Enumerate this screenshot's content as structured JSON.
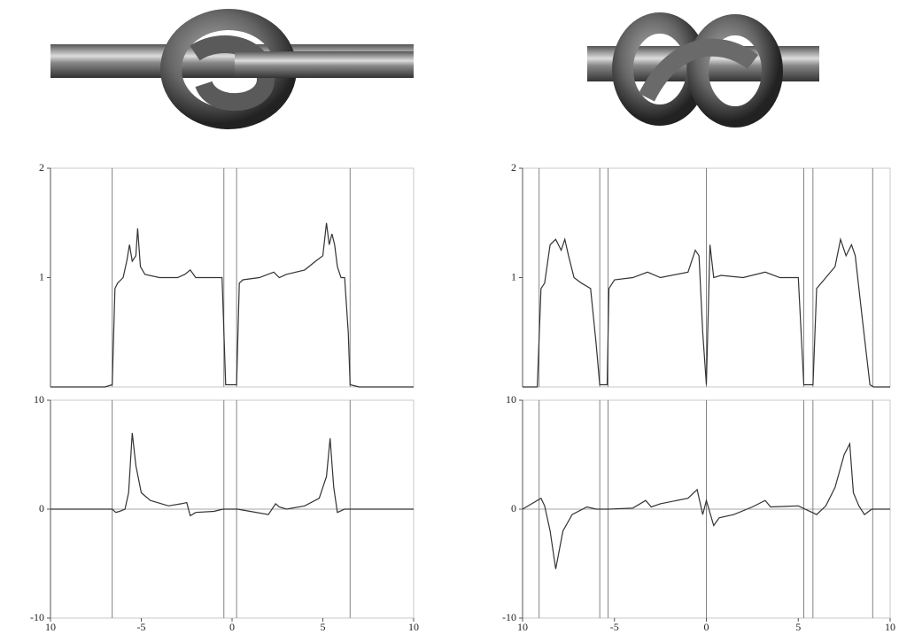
{
  "chart_data": [
    {
      "type": "line",
      "xlim": [
        -10,
        10
      ],
      "ylim": [
        0,
        2
      ],
      "yticks": [
        1,
        2
      ],
      "vlines": [
        -6.6,
        -0.45,
        0.25,
        6.5
      ],
      "color": "#333333",
      "x": [
        -10,
        -7,
        -6.6,
        -6.45,
        -6.3,
        -6.0,
        -5.8,
        -5.65,
        -5.5,
        -5.3,
        -5.2,
        -5.05,
        -4.8,
        -4.0,
        -3.0,
        -2.6,
        -2.3,
        -2.0,
        -1.0,
        -0.55,
        -0.45,
        -0.35,
        0.25,
        0.4,
        0.6,
        1.5,
        2.3,
        2.6,
        3.0,
        4.0,
        4.6,
        5.0,
        5.2,
        5.35,
        5.5,
        5.65,
        5.8,
        6.0,
        6.2,
        6.4,
        6.5,
        7,
        10
      ],
      "values": [
        0,
        0,
        0.02,
        0.9,
        0.95,
        1.0,
        1.15,
        1.3,
        1.15,
        1.2,
        1.45,
        1.1,
        1.03,
        1.0,
        1.0,
        1.03,
        1.07,
        1.0,
        1.0,
        1.0,
        0.5,
        0.02,
        0.02,
        0.95,
        0.98,
        1.0,
        1.05,
        1.0,
        1.03,
        1.07,
        1.15,
        1.2,
        1.5,
        1.3,
        1.4,
        1.3,
        1.1,
        1.0,
        1.0,
        0.5,
        0.02,
        0,
        0
      ]
    },
    {
      "type": "line",
      "xlim": [
        -10,
        10
      ],
      "ylim": [
        -10,
        10
      ],
      "yticks": [
        -10,
        0,
        10
      ],
      "zero_line": true,
      "vlines": [
        -6.6,
        -0.45,
        0.25,
        6.5
      ],
      "color": "#333333",
      "xticks": [
        {
          "value": -10,
          "label": "10"
        },
        -5,
        0,
        5,
        10
      ],
      "x": [
        -10,
        -6.6,
        -6.4,
        -6.2,
        -5.9,
        -5.7,
        -5.5,
        -5.3,
        -5.0,
        -4.5,
        -3.5,
        -2.8,
        -2.5,
        -2.3,
        -2.0,
        -1.0,
        -0.5,
        0.3,
        1.0,
        2.0,
        2.4,
        2.6,
        3.0,
        4.0,
        4.8,
        5.2,
        5.4,
        5.6,
        5.8,
        6.2,
        7,
        10
      ],
      "values": [
        0,
        0,
        -0.3,
        -0.2,
        0,
        1.5,
        7,
        4,
        1.5,
        0.8,
        0.3,
        0.5,
        0.6,
        -0.6,
        -0.3,
        -0.2,
        0,
        0,
        -0.2,
        -0.5,
        0.5,
        0.2,
        0,
        0.3,
        1,
        3,
        6.5,
        2,
        -0.3,
        0,
        0,
        0
      ]
    },
    {
      "type": "line",
      "xlim": [
        -10,
        10
      ],
      "ylim": [
        0,
        2
      ],
      "yticks": [
        1,
        2
      ],
      "vlines": [
        -9.1,
        -5.8,
        -5.35,
        0,
        5.3,
        5.8,
        9.05
      ],
      "color": "#333333",
      "x": [
        -10,
        -9.2,
        -9.0,
        -8.8,
        -8.5,
        -8.2,
        -7.9,
        -7.7,
        -7.5,
        -7.2,
        -6.8,
        -6.3,
        -6.0,
        -5.8,
        -5.4,
        -5.3,
        -5.0,
        -4.0,
        -3.2,
        -2.5,
        -1.0,
        -0.6,
        -0.4,
        -0.2,
        0,
        0.2,
        0.4,
        0.8,
        2.0,
        3.2,
        4.0,
        5.0,
        5.3,
        5.8,
        6.0,
        6.5,
        7.0,
        7.3,
        7.6,
        7.9,
        8.1,
        8.5,
        8.9,
        9.1,
        10
      ],
      "values": [
        0,
        0,
        0.9,
        0.95,
        1.3,
        1.35,
        1.25,
        1.35,
        1.2,
        1.0,
        0.95,
        0.9,
        0.4,
        0.02,
        0.02,
        0.9,
        0.98,
        1.0,
        1.05,
        1.0,
        1.05,
        1.25,
        1.2,
        0.5,
        0.02,
        1.3,
        1.0,
        1.02,
        1.0,
        1.05,
        1.0,
        1.0,
        0.02,
        0.02,
        0.9,
        1.0,
        1.1,
        1.35,
        1.2,
        1.3,
        1.2,
        0.6,
        0.02,
        0,
        0
      ]
    },
    {
      "type": "line",
      "xlim": [
        -10,
        10
      ],
      "ylim": [
        -10,
        10
      ],
      "yticks": [
        -10,
        0,
        10
      ],
      "zero_line": true,
      "vlines": [
        -9.1,
        -5.8,
        -5.35,
        0,
        5.3,
        5.8,
        9.05
      ],
      "color": "#333333",
      "xticks": [
        {
          "value": -10,
          "label": "10"
        },
        -5,
        0,
        5,
        10
      ],
      "x": [
        -10,
        -9.0,
        -8.8,
        -8.5,
        -8.2,
        -7.8,
        -7.3,
        -6.5,
        -6.0,
        -5.3,
        -4.0,
        -3.3,
        -3.0,
        -2.5,
        -1.0,
        -0.5,
        -0.2,
        0,
        0.4,
        0.7,
        1.5,
        2.5,
        3.2,
        3.5,
        5.0,
        6.0,
        6.5,
        7.0,
        7.5,
        7.8,
        8.0,
        8.3,
        8.6,
        9.0,
        10
      ],
      "values": [
        0,
        1,
        0.3,
        -2,
        -5.5,
        -2,
        -0.5,
        0.2,
        0,
        0,
        0.1,
        0.8,
        0.2,
        0.5,
        1,
        1.8,
        -0.5,
        0.8,
        -1.5,
        -0.8,
        -0.5,
        0.2,
        0.8,
        0.2,
        0.3,
        -0.5,
        0.3,
        2,
        5,
        6,
        1.5,
        0.3,
        -0.5,
        0,
        0
      ]
    }
  ]
}
